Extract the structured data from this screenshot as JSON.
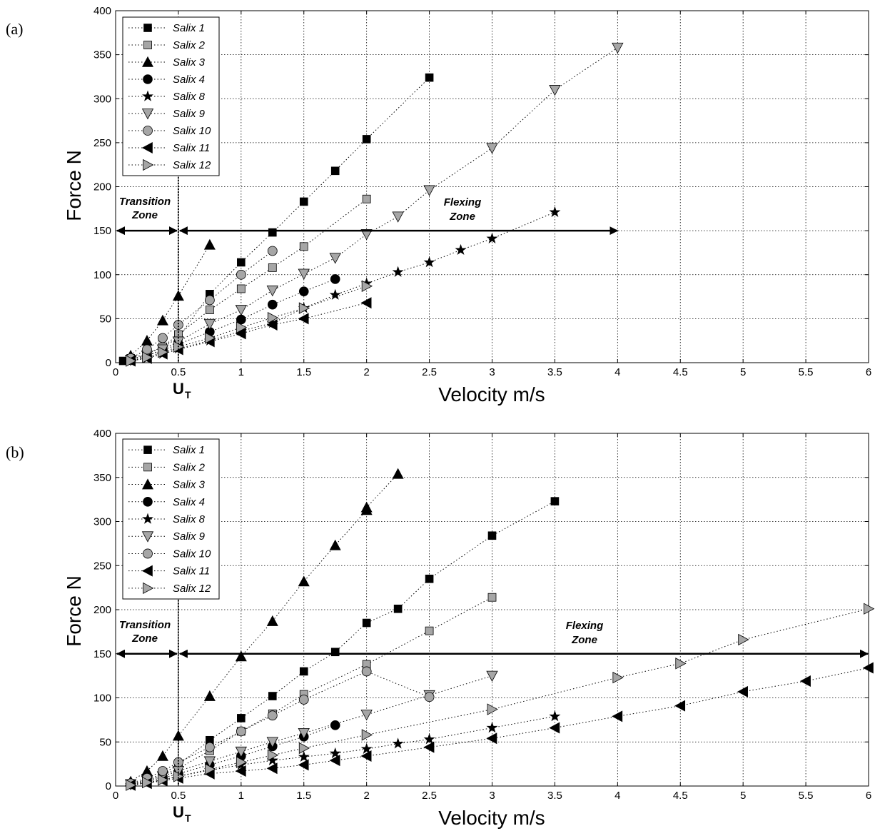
{
  "chart_data": [
    {
      "type": "scatter",
      "panel_label": "(a)",
      "xlabel": "Velocity m/s",
      "ylabel": "Force N",
      "xlim": [
        0,
        6
      ],
      "ylim": [
        0,
        400
      ],
      "xticks": [
        "0",
        "0.5",
        "1",
        "1.5",
        "2",
        "2.5",
        "3",
        "3.5",
        "4",
        "4.5",
        "5",
        "5.5",
        "6"
      ],
      "yticks": [
        "0",
        "50",
        "100",
        "150",
        "200",
        "250",
        "300",
        "350",
        "400"
      ],
      "grid": true,
      "legend_position": "top-left",
      "annotations": {
        "transition_zone": [
          "Transition",
          "Zone"
        ],
        "flexing_zone": [
          "Flexing",
          "Zone"
        ],
        "ut_label": "U",
        "ut_sub": "T",
        "ut_x": 0.5,
        "arrow_y": 150,
        "transition_range": [
          0,
          0.5
        ],
        "flexing_range": [
          0.5,
          4
        ]
      },
      "series": [
        {
          "name": "Salix 1",
          "marker": "square",
          "fill": "#000000",
          "x": [
            0.06,
            0.12,
            0.25,
            0.375,
            0.5,
            0.75,
            1.0,
            1.25,
            1.5,
            1.75,
            2.0,
            2.5
          ],
          "y": [
            2,
            5,
            10,
            18,
            28,
            78,
            114,
            148,
            183,
            218,
            254,
            324
          ]
        },
        {
          "name": "Salix 2",
          "marker": "square",
          "fill": "#a6a6a6",
          "x": [
            0.12,
            0.25,
            0.375,
            0.5,
            0.75,
            1.0,
            1.25,
            1.5,
            2.0
          ],
          "y": [
            3,
            10,
            18,
            32,
            60,
            84,
            108,
            132,
            186
          ]
        },
        {
          "name": "Salix 3",
          "marker": "triangle-up",
          "fill": "#000000",
          "x": [
            0.12,
            0.25,
            0.375,
            0.5,
            0.75
          ],
          "y": [
            8,
            25,
            48,
            76,
            134
          ]
        },
        {
          "name": "Salix 4",
          "marker": "circle",
          "fill": "#000000",
          "x": [
            0.12,
            0.25,
            0.375,
            0.5,
            0.75,
            1.0,
            1.25,
            1.5,
            1.75
          ],
          "y": [
            3,
            8,
            14,
            21,
            35,
            49,
            66,
            81,
            95
          ]
        },
        {
          "name": "Salix 8",
          "marker": "star",
          "fill": "#000000",
          "x": [
            0.12,
            0.25,
            0.375,
            0.5,
            0.75,
            1.0,
            1.25,
            1.5,
            1.75,
            2.0,
            2.25,
            2.5,
            2.75,
            3.0,
            3.5
          ],
          "y": [
            2,
            5,
            10,
            16,
            25,
            36,
            45,
            62,
            77,
            90,
            103,
            114,
            128,
            141,
            171
          ]
        },
        {
          "name": "Salix 9",
          "marker": "triangle-down",
          "fill": "#a6a6a6",
          "x": [
            0.12,
            0.25,
            0.375,
            0.5,
            0.75,
            1.0,
            1.25,
            1.5,
            1.75,
            2.0,
            2.25,
            2.5,
            3.0,
            3.5,
            4.0
          ],
          "y": [
            3,
            8,
            15,
            24,
            44,
            60,
            82,
            101,
            119,
            146,
            166,
            196,
            244,
            310,
            358
          ]
        },
        {
          "name": "Salix 10",
          "marker": "circle",
          "fill": "#a6a6a6",
          "x": [
            0.12,
            0.25,
            0.375,
            0.5,
            0.75,
            1.0,
            1.25
          ],
          "y": [
            5,
            15,
            28,
            43,
            71,
            100,
            127
          ]
        },
        {
          "name": "Salix 11",
          "marker": "triangle-left",
          "fill": "#000000",
          "x": [
            0.12,
            0.25,
            0.375,
            0.5,
            0.75,
            1.0,
            1.25,
            1.5,
            2.0
          ],
          "y": [
            2,
            5,
            10,
            15,
            24,
            33,
            43,
            50,
            68
          ]
        },
        {
          "name": "Salix 12",
          "marker": "triangle-right",
          "fill": "#a6a6a6",
          "x": [
            0.12,
            0.25,
            0.375,
            0.5,
            0.75,
            1.0,
            1.25,
            1.5,
            2.0
          ],
          "y": [
            2,
            6,
            12,
            18,
            28,
            40,
            51,
            62,
            87
          ]
        }
      ]
    },
    {
      "type": "scatter",
      "panel_label": "(b)",
      "xlabel": "Velocity m/s",
      "ylabel": "Force N",
      "xlim": [
        0,
        6
      ],
      "ylim": [
        0,
        400
      ],
      "xticks": [
        "0",
        "0.5",
        "1",
        "1.5",
        "2",
        "2.5",
        "3",
        "3.5",
        "4",
        "4.5",
        "5",
        "5.5",
        "6"
      ],
      "yticks": [
        "0",
        "50",
        "100",
        "150",
        "200",
        "250",
        "300",
        "350",
        "400"
      ],
      "grid": true,
      "legend_position": "top-left",
      "annotations": {
        "transition_zone": [
          "Transition",
          "Zone"
        ],
        "flexing_zone": [
          "Flexing",
          "Zone"
        ],
        "ut_label": "U",
        "ut_sub": "T",
        "ut_x": 0.5,
        "arrow_y": 150,
        "transition_range": [
          0,
          0.5
        ],
        "flexing_range": [
          0.5,
          6
        ]
      },
      "series": [
        {
          "name": "Salix 1",
          "marker": "square",
          "fill": "#000000",
          "x": [
            0.12,
            0.25,
            0.375,
            0.5,
            0.75,
            1.0,
            1.25,
            1.5,
            1.75,
            2.0,
            2.25,
            2.5,
            3.0,
            3.5
          ],
          "y": [
            2,
            7,
            14,
            24,
            52,
            77,
            102,
            130,
            152,
            185,
            201,
            235,
            284,
            323
          ]
        },
        {
          "name": "Salix 2",
          "marker": "square",
          "fill": "#a6a6a6",
          "x": [
            0.12,
            0.25,
            0.375,
            0.5,
            0.75,
            1.0,
            1.25,
            1.5,
            2.0,
            2.5,
            3.0
          ],
          "y": [
            2,
            6,
            12,
            20,
            40,
            62,
            82,
            104,
            138,
            176,
            214
          ]
        },
        {
          "name": "Salix 3",
          "marker": "triangle-up",
          "fill": "#000000",
          "x": [
            0.12,
            0.25,
            0.375,
            0.5,
            0.75,
            1.0,
            1.25,
            1.5,
            1.75,
            2.0,
            2.0,
            2.25
          ],
          "y": [
            5,
            17,
            34,
            57,
            102,
            147,
            187,
            232,
            273,
            313,
            316,
            354
          ]
        },
        {
          "name": "Salix 4",
          "marker": "circle",
          "fill": "#000000",
          "x": [
            0.12,
            0.25,
            0.375,
            0.5,
            0.75,
            1.0,
            1.25,
            1.5,
            1.75
          ],
          "y": [
            2,
            5,
            9,
            14,
            24,
            34,
            45,
            56,
            69
          ]
        },
        {
          "name": "Salix 8",
          "marker": "star",
          "fill": "#000000",
          "x": [
            0.12,
            0.25,
            0.375,
            0.5,
            0.75,
            1.0,
            1.25,
            1.5,
            1.75,
            2.0,
            2.25,
            2.5,
            3.0,
            3.5
          ],
          "y": [
            1,
            4,
            7,
            11,
            18,
            24,
            29,
            33,
            37,
            42,
            48,
            53,
            66,
            79
          ]
        },
        {
          "name": "Salix 9",
          "marker": "triangle-down",
          "fill": "#a6a6a6",
          "x": [
            0.12,
            0.25,
            0.375,
            0.5,
            0.75,
            1.0,
            1.25,
            1.5,
            2.0,
            2.5,
            3.0
          ],
          "y": [
            2,
            6,
            11,
            17,
            28,
            39,
            50,
            60,
            81,
            103,
            125
          ]
        },
        {
          "name": "Salix 10",
          "marker": "circle",
          "fill": "#a6a6a6",
          "x": [
            0.12,
            0.25,
            0.375,
            0.5,
            0.75,
            1.0,
            1.25,
            1.5,
            2.0,
            2.5
          ],
          "y": [
            3,
            9,
            17,
            27,
            44,
            62,
            80,
            98,
            130,
            101
          ]
        },
        {
          "name": "Salix 11",
          "marker": "triangle-left",
          "fill": "#000000",
          "x": [
            0.12,
            0.25,
            0.375,
            0.5,
            0.75,
            1.0,
            1.25,
            1.5,
            1.75,
            2.0,
            2.5,
            3.0,
            3.5,
            4.0,
            4.5,
            5.0,
            5.5,
            6.0
          ],
          "y": [
            1,
            3,
            6,
            9,
            14,
            17,
            20,
            24,
            29,
            34,
            44,
            54,
            66,
            79,
            91,
            107,
            119,
            134
          ]
        },
        {
          "name": "Salix 12",
          "marker": "triangle-right",
          "fill": "#a6a6a6",
          "x": [
            0.12,
            0.25,
            0.375,
            0.5,
            0.75,
            1.0,
            1.25,
            1.5,
            2.0,
            3.0,
            4.0,
            4.5,
            5.0,
            6.0
          ],
          "y": [
            1,
            4,
            7,
            11,
            19,
            27,
            35,
            43,
            58,
            87,
            123,
            139,
            166,
            201
          ]
        }
      ]
    }
  ]
}
